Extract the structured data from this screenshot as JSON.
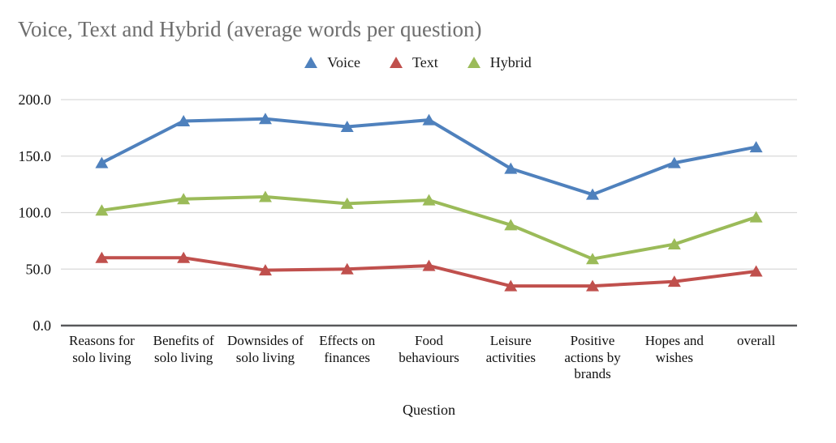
{
  "title": "Voice, Text and Hybrid (average words per question)",
  "x_axis_title": "Question",
  "chart_data": {
    "type": "line",
    "title": "Voice, Text and Hybrid (average words per question)",
    "xlabel": "Question",
    "ylabel": "",
    "ylim": [
      0,
      200
    ],
    "grid": true,
    "legend_position": "top",
    "marker": "triangle",
    "categories": [
      "Reasons for solo living",
      "Benefits of solo living",
      "Downsides of solo living",
      "Effects on finances",
      "Food behaviours",
      "Leisure activities",
      "Positive actions by brands",
      "Hopes and wishes",
      "overall"
    ],
    "series": [
      {
        "name": "Voice",
        "color": "#4f81bd",
        "values": [
          144,
          181,
          183,
          176,
          182,
          139,
          116,
          144,
          158
        ]
      },
      {
        "name": "Text",
        "color": "#c0504d",
        "values": [
          60,
          60,
          49,
          50,
          53,
          35,
          35,
          39,
          48
        ]
      },
      {
        "name": "Hybrid",
        "color": "#9bbb59",
        "values": [
          102,
          112,
          114,
          108,
          111,
          89,
          59,
          72,
          96
        ]
      }
    ],
    "yticks": [
      {
        "value": 0,
        "label": "0.0"
      },
      {
        "value": 50,
        "label": "50.0"
      },
      {
        "value": 100,
        "label": "100.0"
      },
      {
        "value": 150,
        "label": "150.0"
      },
      {
        "value": 200,
        "label": "200.0"
      }
    ]
  },
  "colors": {
    "title_text": "#6e6e6e",
    "axis_text": "#111111",
    "gridline": "#d9d9d9",
    "axis_line": "#58595b",
    "background": "#ffffff"
  }
}
